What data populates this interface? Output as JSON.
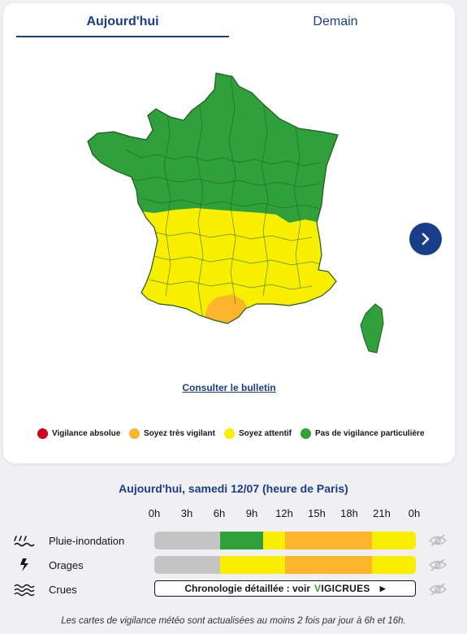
{
  "tabs": {
    "today": "Aujourd'hui",
    "tomorrow": "Demain"
  },
  "map": {
    "colors": {
      "green": "#2fa03a",
      "yellow": "#f8ef00",
      "orange": "#fcb42c",
      "red": "#d0021b",
      "border": "#1d5a1d"
    }
  },
  "bulletin_link": "Consulter le bulletin",
  "legend": [
    {
      "label": "Vigilance absolue",
      "color": "#d0021b"
    },
    {
      "label": "Soyez très vigilant",
      "color": "#fcb42c"
    },
    {
      "label": "Soyez attentif",
      "color": "#f8ef00"
    },
    {
      "label": "Pas de vigilance particulière",
      "color": "#2fa03a"
    }
  ],
  "timeline": {
    "title": "Aujourd'hui, samedi 12/07 (heure de Paris)",
    "hours": [
      "0h",
      "3h",
      "6h",
      "9h",
      "12h",
      "15h",
      "18h",
      "21h",
      "0h"
    ],
    "rows": [
      {
        "label": "Pluie-inondation",
        "icon": "rain-flood-icon",
        "segments": [
          {
            "from": 0,
            "to": 6,
            "color": "#c4c4c4"
          },
          {
            "from": 6,
            "to": 10,
            "color": "#2fa03a"
          },
          {
            "from": 10,
            "to": 12,
            "color": "#f8ef00"
          },
          {
            "from": 12,
            "to": 20,
            "color": "#fcb42c"
          },
          {
            "from": 20,
            "to": 24,
            "color": "#f8ef00"
          }
        ]
      },
      {
        "label": "Orages",
        "icon": "lightning-icon",
        "segments": [
          {
            "from": 0,
            "to": 6,
            "color": "#c4c4c4"
          },
          {
            "from": 6,
            "to": 12,
            "color": "#f8ef00"
          },
          {
            "from": 12,
            "to": 20,
            "color": "#fcb42c"
          },
          {
            "from": 20,
            "to": 24,
            "color": "#f8ef00"
          }
        ]
      },
      {
        "label": "Crues",
        "icon": "waves-icon",
        "link_text": "Chronologie détaillée : voir",
        "logo_text": "VIGICRUES"
      }
    ]
  },
  "footnote": "Les cartes de vigilance météo sont actualisées au moins 2 fois par jour à 6h et 16h."
}
